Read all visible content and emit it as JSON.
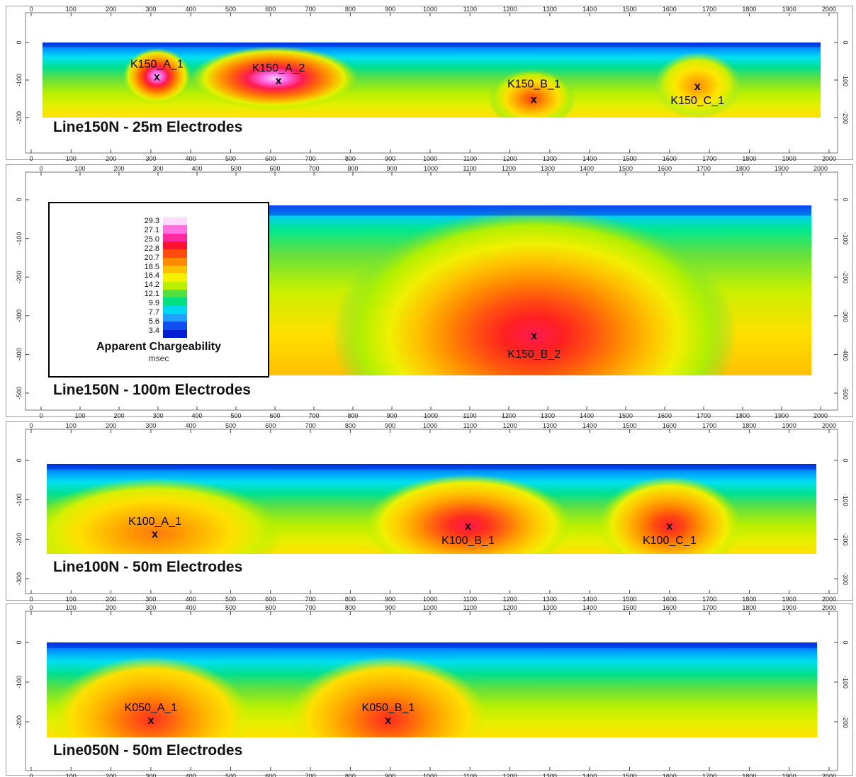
{
  "chart_data": [
    {
      "type": "heatmap",
      "title": "Line150N - 25m Electrodes",
      "xlim": [
        0,
        2000
      ],
      "ylim": [
        -200,
        0
      ],
      "x_ticks": [
        0,
        100,
        200,
        300,
        400,
        500,
        600,
        700,
        800,
        900,
        1000,
        1100,
        1200,
        1300,
        1400,
        1500,
        1600,
        1700,
        1800,
        1900,
        2000
      ],
      "y_ticks": [
        0,
        -100,
        -200
      ],
      "annotations": [
        {
          "label": "K150_A_1",
          "x": 315,
          "y": -90
        },
        {
          "label": "K150_A_2",
          "x": 620,
          "y": -100
        },
        {
          "label": "K150_B_1",
          "x": 1260,
          "y": -150
        },
        {
          "label": "K150_C_1",
          "x": 1670,
          "y": -115
        }
      ]
    },
    {
      "type": "heatmap",
      "title": "Line150N - 100m Electrodes",
      "xlim": [
        0,
        2000
      ],
      "ylim": [
        -500,
        0
      ],
      "x_ticks": [
        0,
        100,
        200,
        300,
        400,
        500,
        600,
        700,
        800,
        900,
        1000,
        1100,
        1200,
        1300,
        1400,
        1500,
        1600,
        1700,
        1800,
        1900,
        2000
      ],
      "y_ticks": [
        0,
        -100,
        -200,
        -300,
        -400,
        -500
      ],
      "annotations": [
        {
          "label": "K150_B_2",
          "x": 1265,
          "y": -350
        }
      ]
    },
    {
      "type": "heatmap",
      "title": "Line100N - 50m Electrodes",
      "xlim": [
        0,
        2000
      ],
      "ylim": [
        -300,
        0
      ],
      "x_ticks": [
        0,
        100,
        200,
        300,
        400,
        500,
        600,
        700,
        800,
        900,
        1000,
        1100,
        1200,
        1300,
        1400,
        1500,
        1600,
        1700,
        1800,
        1900,
        2000
      ],
      "y_ticks": [
        0,
        -100,
        -200,
        -300
      ],
      "annotations": [
        {
          "label": "K100_A_1",
          "x": 310,
          "y": -185
        },
        {
          "label": "K100_B_1",
          "x": 1095,
          "y": -165
        },
        {
          "label": "K100_C_1",
          "x": 1600,
          "y": -165
        }
      ]
    },
    {
      "type": "heatmap",
      "title": "Line050N - 50m Electrodes",
      "xlim": [
        0,
        2000
      ],
      "ylim": [
        -250,
        0
      ],
      "x_ticks": [
        0,
        100,
        200,
        300,
        400,
        500,
        600,
        700,
        800,
        900,
        1000,
        1100,
        1200,
        1300,
        1400,
        1500,
        1600,
        1700,
        1800,
        1900,
        2000
      ],
      "y_ticks": [
        0,
        -100,
        -200
      ],
      "annotations": [
        {
          "label": "K050_A_1",
          "x": 300,
          "y": -195
        },
        {
          "label": "K050_B_1",
          "x": 895,
          "y": -195
        }
      ]
    }
  ],
  "legend": {
    "title": "Apparent Chargeability",
    "unit": "msec",
    "values": [
      "29.3",
      "27.1",
      "25.0",
      "22.8",
      "20.7",
      "18.5",
      "16.4",
      "14.2",
      "12.1",
      "9.9",
      "7.7",
      "5.6",
      "3.4"
    ],
    "colors": [
      "#ffd9ff",
      "#ff70e0",
      "#ff2aa0",
      "#ff1030",
      "#ff4a10",
      "#ff8a00",
      "#ffc000",
      "#f4f000",
      "#b8f000",
      "#50e040",
      "#00e080",
      "#00d8f0",
      "#20a0ff",
      "#1050f0",
      "#0020d0"
    ]
  }
}
